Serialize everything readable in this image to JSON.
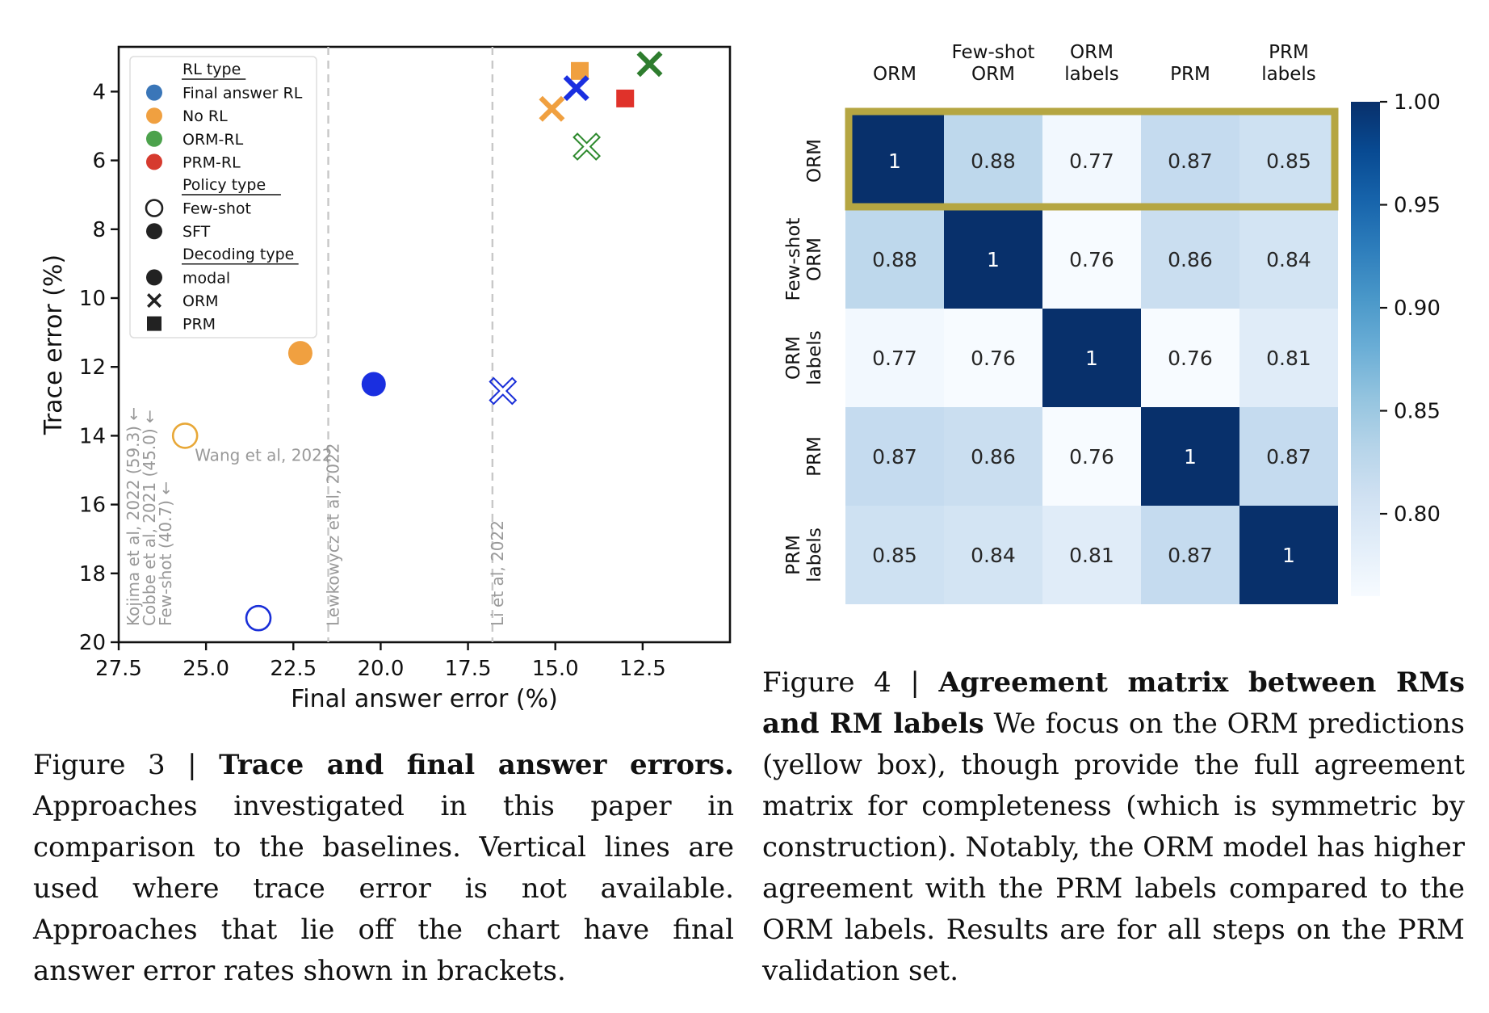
{
  "figure3": {
    "caption_prefix": "Figure 3 | ",
    "caption_title": "Trace and final answer errors.",
    "caption_body": " Approaches investigated in this paper in comparison to the baselines. Vertical lines are used where trace error is not available. Approaches that lie off the chart have final answer error rates shown in brackets."
  },
  "figure4": {
    "caption_prefix": "Figure 4 | ",
    "caption_title": "Agreement matrix between RMs and RM labels",
    "caption_body": " We focus on the ORM predictions (yellow box), though provide the full agreement matrix for completeness (which is symmetric by construction). Notably, the ORM model has higher agreement with the PRM labels compared to the ORM labels. Results are for all steps on the PRM validation set."
  },
  "chart_data": [
    {
      "type": "scatter",
      "xlabel": "Final answer error (%)",
      "ylabel": "Trace error (%)",
      "xlim": [
        27.5,
        10.0
      ],
      "ylim": [
        20.0,
        2.7
      ],
      "x_inverted": true,
      "y_inverted": true,
      "xticks": [
        27.5,
        25.0,
        22.5,
        20.0,
        17.5,
        15.0,
        12.5
      ],
      "xtick_labels": [
        "27.5",
        "25.0",
        "22.5",
        "20.0",
        "17.5",
        "15.0",
        "12.5"
      ],
      "yticks": [
        4,
        6,
        8,
        10,
        12,
        14,
        16,
        18,
        20
      ],
      "ytick_labels": [
        "4",
        "6",
        "8",
        "10",
        "12",
        "14",
        "16",
        "18",
        "20"
      ],
      "grid": false,
      "legend_position": "top-left",
      "legend": {
        "sections": [
          {
            "title": "RL type",
            "items": [
              {
                "label": "Final answer RL",
                "marker": "circle",
                "color": "#3a76b8"
              },
              {
                "label": "No RL",
                "marker": "circle",
                "color": "#f0a040"
              },
              {
                "label": "ORM-RL",
                "marker": "circle",
                "color": "#4ca24c"
              },
              {
                "label": "PRM-RL",
                "marker": "circle",
                "color": "#d63a2e"
              }
            ]
          },
          {
            "title": "Policy type",
            "items": [
              {
                "label": "Few-shot",
                "marker": "circle-open",
                "color": "#222222"
              },
              {
                "label": "SFT",
                "marker": "circle",
                "color": "#222222"
              }
            ]
          },
          {
            "title": "Decoding type",
            "items": [
              {
                "label": "modal",
                "marker": "circle",
                "color": "#222222"
              },
              {
                "label": "ORM",
                "marker": "x",
                "color": "#222222"
              },
              {
                "label": "PRM",
                "marker": "square",
                "color": "#222222"
              }
            ]
          }
        ]
      },
      "points": [
        {
          "x": 22.3,
          "y": 11.6,
          "marker": "circle",
          "filled": true,
          "color": "#f0a040"
        },
        {
          "x": 25.6,
          "y": 14.0,
          "marker": "circle",
          "filled": false,
          "color": "#e8a838"
        },
        {
          "x": 20.2,
          "y": 12.5,
          "marker": "circle",
          "filled": true,
          "color": "#1a2fe0"
        },
        {
          "x": 23.5,
          "y": 19.3,
          "marker": "circle",
          "filled": false,
          "color": "#1a2fd8"
        },
        {
          "x": 16.5,
          "y": 12.7,
          "marker": "x",
          "filled": false,
          "color": "#1a2fd8"
        },
        {
          "x": 14.1,
          "y": 5.6,
          "marker": "x",
          "filled": false,
          "color": "#2e8a2e"
        },
        {
          "x": 14.3,
          "y": 3.4,
          "marker": "square",
          "filled": true,
          "color": "#f0a040"
        },
        {
          "x": 15.1,
          "y": 4.5,
          "marker": "x",
          "filled": true,
          "color": "#f0a040"
        },
        {
          "x": 14.4,
          "y": 3.9,
          "marker": "x",
          "filled": true,
          "color": "#1a2fe0"
        },
        {
          "x": 12.3,
          "y": 3.2,
          "marker": "x",
          "filled": true,
          "color": "#2e7d2e"
        },
        {
          "x": 13.0,
          "y": 4.2,
          "marker": "square",
          "filled": true,
          "color": "#e0322a"
        }
      ],
      "point_label": {
        "text": "Wang et al, 2022",
        "x": 25.6,
        "y": 14.0
      },
      "vlines": [
        {
          "x": 21.5,
          "label": "Lewkowycz et al, 2022"
        },
        {
          "x": 16.8,
          "label": "Li et al, 2022"
        }
      ],
      "offchart_labels": [
        "Kojima et al, 2022 (59.3) ←",
        "Cobbe et al, 2021 (45.0) ←",
        "Few-shot (40.7) ←"
      ]
    },
    {
      "type": "heatmap",
      "column_labels": [
        [
          "ORM"
        ],
        [
          "Few-shot",
          "ORM"
        ],
        [
          "ORM",
          "labels"
        ],
        [
          "PRM"
        ],
        [
          "PRM",
          "labels"
        ]
      ],
      "row_labels": [
        [
          "ORM"
        ],
        [
          "Few-shot",
          "ORM"
        ],
        [
          "ORM",
          "labels"
        ],
        [
          "PRM"
        ],
        [
          "PRM",
          "labels"
        ]
      ],
      "values": [
        [
          1,
          0.88,
          0.77,
          0.87,
          0.85
        ],
        [
          0.88,
          1,
          0.76,
          0.86,
          0.84
        ],
        [
          0.77,
          0.76,
          1,
          0.76,
          0.81
        ],
        [
          0.87,
          0.86,
          0.76,
          1,
          0.87
        ],
        [
          0.85,
          0.84,
          0.81,
          0.87,
          1
        ]
      ],
      "value_labels": [
        [
          "1",
          "0.88",
          "0.77",
          "0.87",
          "0.85"
        ],
        [
          "0.88",
          "1",
          "0.76",
          "0.86",
          "0.84"
        ],
        [
          "0.77",
          "0.76",
          "1",
          "0.76",
          "0.81"
        ],
        [
          "0.87",
          "0.86",
          "0.76",
          "1",
          "0.87"
        ],
        [
          "0.85",
          "0.84",
          "0.81",
          "0.87",
          "1"
        ]
      ],
      "colormap": "Blues",
      "colorbar_range": [
        0.76,
        1.0
      ],
      "colorbar_ticks": [
        1.0,
        0.95,
        0.9,
        0.85,
        0.8
      ],
      "colorbar_tick_labels": [
        "1.00",
        "0.95",
        "0.90",
        "0.85",
        "0.80"
      ],
      "highlight_row": 0,
      "highlight_color": "#b5a642"
    }
  ]
}
